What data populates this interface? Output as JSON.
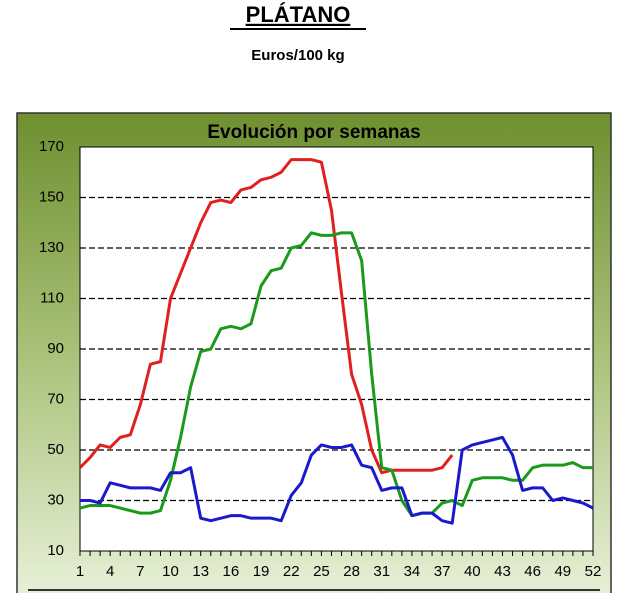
{
  "title": "PLÁTANO",
  "subtitle": "Euros/100 kg",
  "chart_data": {
    "type": "line",
    "title": "Evolución por semanas",
    "x": [
      1,
      2,
      3,
      4,
      5,
      6,
      7,
      8,
      9,
      10,
      11,
      12,
      13,
      14,
      15,
      16,
      17,
      18,
      19,
      20,
      21,
      22,
      23,
      24,
      25,
      26,
      27,
      28,
      29,
      30,
      31,
      32,
      33,
      34,
      35,
      36,
      37,
      38,
      39,
      40,
      41,
      42,
      43,
      44,
      45,
      46,
      47,
      48,
      49,
      50,
      51,
      52
    ],
    "xlim": [
      1,
      52
    ],
    "xticks": [
      1,
      4,
      7,
      10,
      13,
      16,
      19,
      22,
      25,
      28,
      31,
      34,
      37,
      40,
      43,
      46,
      49,
      52
    ],
    "ylim": [
      10,
      170
    ],
    "yticks": [
      10,
      30,
      50,
      70,
      90,
      110,
      130,
      150,
      170
    ],
    "grid": true,
    "series": [
      {
        "color": "#e02020",
        "values": [
          43,
          47,
          52,
          51,
          55,
          56,
          68,
          84,
          85,
          110,
          120,
          130,
          140,
          148,
          149,
          148,
          153,
          154,
          157,
          158,
          160,
          165,
          165,
          165,
          164,
          145,
          112,
          80,
          68,
          50,
          41,
          42,
          42,
          42,
          42,
          42,
          43,
          48,
          null,
          null,
          null,
          null,
          null,
          null,
          null,
          null,
          null,
          null,
          null,
          null,
          null,
          null
        ]
      },
      {
        "color": "#1a9a1a",
        "values": [
          27,
          28,
          28,
          28,
          27,
          26,
          25,
          25,
          26,
          38,
          55,
          75,
          89,
          90,
          98,
          99,
          98,
          100,
          115,
          121,
          122,
          130,
          131,
          136,
          135,
          135,
          136,
          136,
          125,
          80,
          43,
          42,
          30,
          24,
          25,
          25,
          29,
          30,
          28,
          38,
          39,
          39,
          39,
          38,
          38,
          43,
          44,
          44,
          44,
          45,
          43,
          43
        ]
      },
      {
        "color": "#1a1acc",
        "values": [
          30,
          30,
          29,
          37,
          36,
          35,
          35,
          35,
          34,
          41,
          41,
          43,
          23,
          22,
          23,
          24,
          24,
          23,
          23,
          23,
          22,
          32,
          37,
          48,
          52,
          51,
          51,
          52,
          44,
          43,
          34,
          35,
          35,
          24,
          25,
          25,
          22,
          21,
          50,
          52,
          53,
          54,
          55,
          48,
          34,
          35,
          35,
          30,
          31,
          30,
          29,
          27
        ]
      }
    ]
  }
}
